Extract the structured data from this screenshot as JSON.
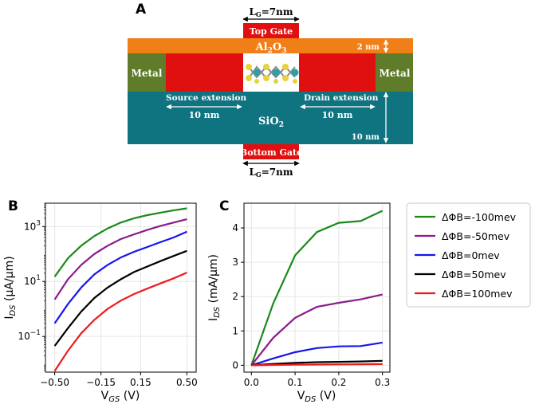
{
  "panels": {
    "a": "A",
    "b": "B",
    "c": "C"
  },
  "device": {
    "lg_top": "L",
    "lg_bottom": "L",
    "lg_sub": "G",
    "lg_value": "=7nm",
    "top_gate": "Top Gate",
    "oxide_top": "Al",
    "oxide_top_sub1": "2",
    "oxide_top_mid": "O",
    "oxide_top_sub2": "3",
    "metal_left": "Metal",
    "metal_right": "Metal",
    "oxide_thickness": "2 nm",
    "source_ext": "Source extension",
    "drain_ext": "Drain extension",
    "source_len": "10 nm",
    "drain_len": "10 nm",
    "substrate": "SiO",
    "substrate_sub": "2",
    "substrate_thickness": "10 nm",
    "bottom_gate": "Bottom Gate",
    "colors": {
      "gate": "#e01010",
      "oxide": "#f07f18",
      "metal": "#5e7c2a",
      "sio2": "#0f7480"
    }
  },
  "chart_data": [
    {
      "type": "line",
      "panel": "B",
      "xlabel": "V",
      "xlabel_sub": "GS",
      "xlabel_unit": " (V)",
      "ylabel": "I",
      "ylabel_sub": "DS",
      "ylabel_unit": " (μA/μm)",
      "yscale": "log",
      "xlim": [
        -0.57,
        0.57
      ],
      "ylim_log10": [
        -2.3,
        3.85
      ],
      "x": [
        -0.5,
        -0.4,
        -0.3,
        -0.2,
        -0.1,
        0.0,
        0.1,
        0.2,
        0.3,
        0.4,
        0.5
      ],
      "xticks": [
        -0.5,
        -0.15,
        0.15,
        0.5
      ],
      "xtick_labels": [
        "−0.50",
        "−0.15",
        "0.15",
        "0.50"
      ],
      "ytick_log10": [
        -1,
        1,
        3
      ],
      "ytick_base": "10",
      "ytick_exp": [
        "−1",
        "1",
        "3"
      ],
      "series": [
        {
          "name": "ΔΦB=-100mev",
          "color": "#1a8a1a",
          "values": [
            15,
            70,
            200,
            450,
            850,
            1400,
            2000,
            2600,
            3200,
            3900,
            4600
          ]
        },
        {
          "name": "ΔΦB=-50mev",
          "color": "#8b1a8b",
          "values": [
            2.2,
            12,
            40,
            100,
            200,
            350,
            520,
            750,
            1050,
            1400,
            1850
          ]
        },
        {
          "name": "ΔΦB=0mev",
          "color": "#1515ee",
          "values": [
            0.3,
            1.5,
            6,
            18,
            40,
            75,
            120,
            180,
            270,
            400,
            650
          ]
        },
        {
          "name": "ΔΦB=50mev",
          "color": "#000000",
          "values": [
            0.045,
            0.2,
            0.8,
            2.5,
            6,
            12,
            22,
            35,
            55,
            85,
            130
          ]
        },
        {
          "name": "ΔΦB=100mev",
          "color": "#ee1a1a",
          "values": [
            0.0055,
            0.03,
            0.13,
            0.4,
            1.0,
            2.0,
            3.5,
            5.5,
            8.5,
            13,
            21
          ]
        }
      ]
    },
    {
      "type": "line",
      "panel": "C",
      "xlabel": "V",
      "xlabel_sub": "DS",
      "xlabel_unit": " (V)",
      "ylabel": "I",
      "ylabel_sub": "DS",
      "ylabel_unit": " (mA/μm)",
      "xlim": [
        -0.017,
        0.317
      ],
      "ylim": [
        -0.2,
        4.72
      ],
      "x": [
        0.0,
        0.05,
        0.1,
        0.15,
        0.2,
        0.25,
        0.3
      ],
      "xticks": [
        0.0,
        0.1,
        0.2,
        0.3
      ],
      "xtick_labels": [
        "0.0",
        "0.1",
        "0.2",
        "0.3"
      ],
      "yticks": [
        0,
        1,
        2,
        3,
        4
      ],
      "ytick_labels": [
        "0",
        "1",
        "2",
        "3",
        "4"
      ],
      "series": [
        {
          "name": "ΔΦB=-100mev",
          "color": "#1a8a1a",
          "values": [
            0.0,
            1.8,
            3.2,
            3.88,
            4.15,
            4.2,
            4.5
          ]
        },
        {
          "name": "ΔΦB=-50mev",
          "color": "#8b1a8b",
          "values": [
            0.0,
            0.8,
            1.38,
            1.7,
            1.82,
            1.92,
            2.06
          ]
        },
        {
          "name": "ΔΦB=0mev",
          "color": "#1515ee",
          "values": [
            0.0,
            0.2,
            0.38,
            0.5,
            0.55,
            0.56,
            0.66
          ]
        },
        {
          "name": "ΔΦB=50mev",
          "color": "#000000",
          "values": [
            0.0,
            0.04,
            0.07,
            0.09,
            0.1,
            0.11,
            0.13
          ]
        },
        {
          "name": "ΔΦB=100mev",
          "color": "#ee1a1a",
          "values": [
            0.0,
            0.01,
            0.015,
            0.02,
            0.025,
            0.03,
            0.035
          ]
        }
      ]
    }
  ],
  "legend": {
    "position": "right",
    "items": [
      "ΔΦB=-100mev",
      "ΔΦB=-50mev",
      "ΔΦB=0mev",
      "ΔΦB=50mev",
      "ΔΦB=100mev"
    ],
    "colors": [
      "#1a8a1a",
      "#8b1a8b",
      "#1515ee",
      "#000000",
      "#ee1a1a"
    ]
  }
}
